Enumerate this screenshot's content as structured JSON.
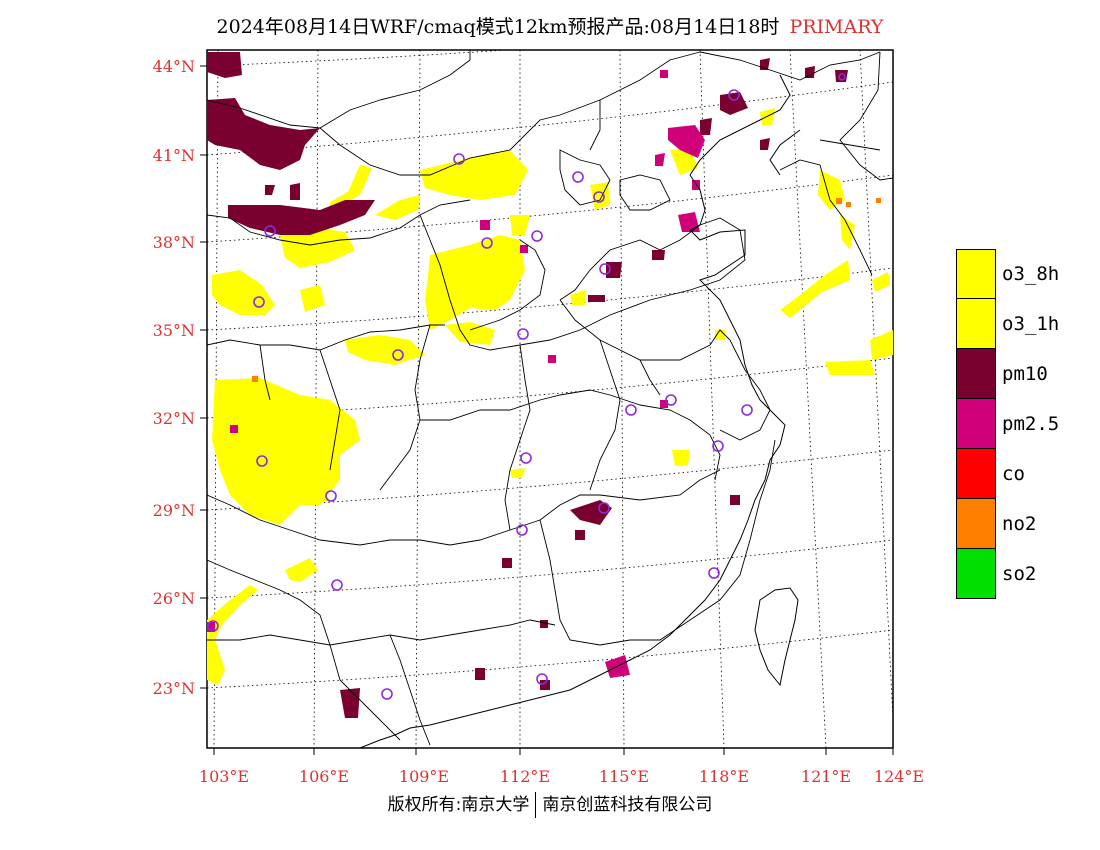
{
  "title": {
    "main": "2024年08月14日WRF/cmaq模式12km预报产品:08月14日18时",
    "tag": "PRIMARY"
  },
  "axes": {
    "lat_labels": [
      "44°N",
      "41°N",
      "38°N",
      "35°N",
      "32°N",
      "29°N",
      "26°N",
      "23°N"
    ],
    "lon_labels": [
      "103°E",
      "106°E",
      "109°E",
      "112°E",
      "115°E",
      "118°E",
      "121°E",
      "124°E"
    ]
  },
  "legend": [
    {
      "label": "o3_8h",
      "color": "#ffff00"
    },
    {
      "label": "o3_1h",
      "color": "#ffff00"
    },
    {
      "label": "pm10",
      "color": "#7a0030"
    },
    {
      "label": "pm2.5",
      "color": "#d0007a"
    },
    {
      "label": "co",
      "color": "#ff0000"
    },
    {
      "label": "no2",
      "color": "#ff8000"
    },
    {
      "label": "so2",
      "color": "#00e000"
    }
  ],
  "footer": {
    "left": "版权所有:南京大学",
    "right": "南京创蓝科技有限公司"
  },
  "colors": {
    "label_red": "#e03030",
    "station_marker": "#8a2be2",
    "o3": "#ffff00",
    "pm10": "#7a0030",
    "pm25": "#d0007a",
    "no2": "#ff8000"
  }
}
